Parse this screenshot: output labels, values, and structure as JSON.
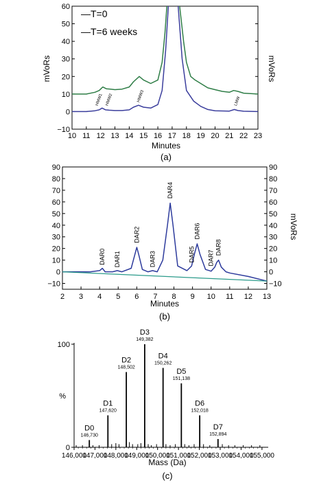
{
  "chart_data": [
    {
      "type": "line",
      "panel_label": "(a)",
      "xlabel": "Minutes",
      "ylabel_left": "mVoRs",
      "ylabel_right": "mVoRs",
      "xlim": [
        10,
        23
      ],
      "ylim": [
        -10,
        60
      ],
      "xticks": [
        "10",
        "11",
        "12",
        "13",
        "14",
        "15",
        "16",
        "17",
        "18",
        "19",
        "20",
        "21",
        "22",
        "23"
      ],
      "yticks": [
        "−10",
        "0",
        "10",
        "20",
        "30",
        "40",
        "50",
        "60"
      ],
      "legend": [
        "—T=0",
        "—T=6 weeks"
      ],
      "colors": {
        "T0": "#3a3d9c",
        "T6": "#2e7d46"
      },
      "series": [
        {
          "name": "—T=0",
          "color": "#3a3d9c",
          "x": [
            10.0,
            11.0,
            11.6,
            11.9,
            12.1,
            12.35,
            12.6,
            13.0,
            13.5,
            14.0,
            14.3,
            14.65,
            15.0,
            15.5,
            16.0,
            16.3,
            16.55,
            16.75,
            17.4,
            17.7,
            18.0,
            18.5,
            19.0,
            19.5,
            20.0,
            21.0,
            21.35,
            21.6,
            22.0,
            23.0
          ],
          "y": [
            0.0,
            0.0,
            0.5,
            1.0,
            2.0,
            1.0,
            0.8,
            0.6,
            0.6,
            1.0,
            2.5,
            3.6,
            2.5,
            2.0,
            4.0,
            12.0,
            35.0,
            62.0,
            62.0,
            30.0,
            12.0,
            6.0,
            3.0,
            1.2,
            0.5,
            0.3,
            1.2,
            0.6,
            0.2,
            0.0
          ]
        },
        {
          "name": "—T=6 weeks",
          "color": "#2e7d46",
          "x": [
            10.0,
            11.0,
            11.6,
            11.9,
            12.15,
            12.4,
            12.7,
            13.0,
            13.5,
            14.0,
            14.3,
            14.7,
            15.0,
            15.5,
            16.0,
            16.3,
            16.5,
            16.65,
            17.5,
            17.8,
            18.0,
            18.3,
            18.6,
            19.0,
            19.5,
            20.0,
            20.5,
            21.0,
            21.3,
            21.6,
            22.0,
            23.0
          ],
          "y": [
            10.0,
            10.0,
            11.0,
            12.0,
            14.0,
            13.0,
            12.8,
            12.5,
            12.8,
            14.0,
            17.0,
            20.0,
            18.0,
            16.0,
            18.0,
            28.0,
            45.0,
            62.0,
            62.0,
            40.0,
            28.0,
            20.0,
            18.0,
            16.0,
            13.5,
            12.5,
            11.5,
            11.0,
            12.0,
            11.5,
            10.5,
            10.0
          ]
        }
      ],
      "annotations": [
        {
          "text": "HMW1",
          "x": 11.8,
          "y": 2
        },
        {
          "text": "HMW2",
          "x": 12.5,
          "y": 2
        },
        {
          "text": "HMW3",
          "x": 14.7,
          "y": 4
        },
        {
          "text": "LMW",
          "x": 21.5,
          "y": 2
        }
      ]
    },
    {
      "type": "line",
      "panel_label": "(b)",
      "xlabel": "Minutes",
      "ylabel_right": "mVoRs",
      "xlim": [
        2,
        13
      ],
      "ylim": [
        -15,
        90
      ],
      "xticks": [
        "2",
        "3",
        "4",
        "5",
        "6",
        "7",
        "8",
        "9",
        "10",
        "11",
        "12",
        "13"
      ],
      "yticks": [
        "−10",
        "0",
        "10",
        "20",
        "30",
        "40",
        "50",
        "60",
        "70",
        "80",
        "90"
      ],
      "colors": {
        "trace": "#2c3a9c",
        "baseline": "#2a9a8a"
      },
      "series": [
        {
          "name": "",
          "color": "#2c3a9c",
          "x": [
            2.0,
            3.5,
            4.0,
            4.15,
            4.3,
            4.7,
            4.95,
            5.2,
            5.7,
            5.9,
            6.0,
            6.1,
            6.3,
            6.6,
            6.85,
            7.1,
            7.4,
            7.65,
            7.8,
            7.95,
            8.2,
            8.7,
            8.95,
            9.1,
            9.25,
            9.4,
            9.7,
            10.0,
            10.2,
            10.3,
            10.4,
            10.55,
            10.8,
            11.0,
            12.0,
            13.0
          ],
          "y": [
            0.0,
            0.0,
            1.0,
            3.0,
            0.0,
            0.0,
            1.0,
            0.0,
            3.0,
            15.0,
            21.0,
            15.0,
            2.0,
            0.0,
            1.0,
            0.0,
            10.0,
            40.0,
            59.0,
            40.0,
            5.0,
            1.0,
            5.0,
            15.0,
            24.0,
            15.0,
            2.0,
            0.5,
            4.0,
            8.0,
            10.0,
            4.0,
            0.0,
            -1.0,
            -4.0,
            -8.0
          ]
        },
        {
          "name": "",
          "color": "#2a9a8a",
          "x": [
            2.0,
            13.0
          ],
          "y": [
            0.0,
            -8.0
          ]
        }
      ],
      "annotations": [
        {
          "text": "DAR0",
          "x": 4.15,
          "y": 4
        },
        {
          "text": "DAR1",
          "x": 4.95,
          "y": 2
        },
        {
          "text": "DAR2",
          "x": 6.0,
          "y": 23
        },
        {
          "text": "DAR3",
          "x": 6.85,
          "y": 2
        },
        {
          "text": "DAR4",
          "x": 7.8,
          "y": 61
        },
        {
          "text": "DAR5",
          "x": 8.95,
          "y": 6
        },
        {
          "text": "DAR6",
          "x": 9.25,
          "y": 26
        },
        {
          "text": "DAR7",
          "x": 10.0,
          "y": 3
        },
        {
          "text": "DAR8",
          "x": 10.4,
          "y": 12
        }
      ]
    },
    {
      "type": "bar",
      "panel_label": "(c)",
      "xlabel": "Mass (Da)",
      "ylabel": "%",
      "xlim": [
        146000,
        155300
      ],
      "ylim": [
        0,
        100
      ],
      "xticks": [
        "146,000",
        "147,000",
        "148,000",
        "149,000",
        "150,000",
        "151,000",
        "152,000",
        "153,000",
        "154,000",
        "155,000"
      ],
      "yticks": [
        "0",
        "100"
      ],
      "color": "#000000",
      "peaks": [
        {
          "label": "D0",
          "mass": "146,730",
          "x": 146730,
          "y": 7
        },
        {
          "label": "D1",
          "mass": "147,620",
          "x": 147620,
          "y": 31
        },
        {
          "label": "D2",
          "mass": "148,502",
          "x": 148502,
          "y": 73
        },
        {
          "label": "D3",
          "mass": "149,382",
          "x": 149382,
          "y": 100
        },
        {
          "label": "D4",
          "mass": "150,262",
          "x": 150262,
          "y": 77
        },
        {
          "label": "D5",
          "mass": "151,138",
          "x": 151138,
          "y": 62
        },
        {
          "label": "D6",
          "mass": "152,018",
          "x": 152018,
          "y": 31
        },
        {
          "label": "D7",
          "mass": "152,894",
          "x": 152894,
          "y": 8
        }
      ],
      "minor_peaks": [
        {
          "x": 146100,
          "y": 2
        },
        {
          "x": 146400,
          "y": 2
        },
        {
          "x": 146900,
          "y": 2
        },
        {
          "x": 147200,
          "y": 2
        },
        {
          "x": 147800,
          "y": 3
        },
        {
          "x": 148000,
          "y": 4
        },
        {
          "x": 148150,
          "y": 3
        },
        {
          "x": 148650,
          "y": 5
        },
        {
          "x": 148800,
          "y": 3
        },
        {
          "x": 149050,
          "y": 3
        },
        {
          "x": 149200,
          "y": 4
        },
        {
          "x": 149550,
          "y": 3
        },
        {
          "x": 149700,
          "y": 2
        },
        {
          "x": 149950,
          "y": 3
        },
        {
          "x": 150400,
          "y": 3
        },
        {
          "x": 150600,
          "y": 2
        },
        {
          "x": 150850,
          "y": 3
        },
        {
          "x": 151300,
          "y": 3
        },
        {
          "x": 151500,
          "y": 2
        },
        {
          "x": 151750,
          "y": 3
        },
        {
          "x": 152200,
          "y": 3
        },
        {
          "x": 152500,
          "y": 2
        },
        {
          "x": 153100,
          "y": 3
        },
        {
          "x": 153400,
          "y": 2
        },
        {
          "x": 153700,
          "y": 2
        },
        {
          "x": 154100,
          "y": 2
        },
        {
          "x": 154500,
          "y": 2
        },
        {
          "x": 154900,
          "y": 2
        }
      ]
    }
  ]
}
